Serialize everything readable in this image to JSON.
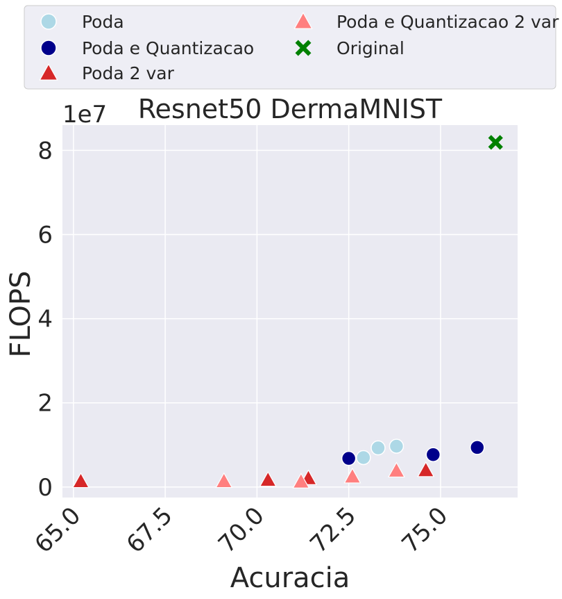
{
  "chart_data": {
    "type": "scatter",
    "title": "Resnet50 DermaMNIST",
    "xlabel": "Acuracia",
    "ylabel": "FLOPS",
    "y_offset_text": "1e7",
    "xlim": [
      64.7,
      77.1
    ],
    "ylim": [
      -0.25,
      8.6
    ],
    "y_scale_exponent": 7,
    "x_ticks": [
      65.0,
      67.5,
      70.0,
      72.5,
      75.0
    ],
    "x_tick_labels": [
      "65.0",
      "67.5",
      "70.0",
      "72.5",
      "75.0"
    ],
    "y_ticks": [
      0,
      2,
      4,
      6,
      8
    ],
    "y_tick_labels": [
      "0",
      "2",
      "4",
      "6",
      "8"
    ],
    "grid": true,
    "legend_position": "top, outside plot, two columns",
    "series": [
      {
        "name": "Poda",
        "marker": "circle",
        "color": "#add8e6",
        "points": [
          [
            72.9,
            0.7
          ],
          [
            73.3,
            0.93
          ],
          [
            73.8,
            0.97
          ]
        ]
      },
      {
        "name": "Poda e Quantizacao",
        "marker": "circle",
        "color": "#00008b",
        "points": [
          [
            72.5,
            0.68
          ],
          [
            74.8,
            0.77
          ],
          [
            76.0,
            0.94
          ]
        ]
      },
      {
        "name": "Poda 2 var",
        "marker": "triangle",
        "color": "#d62728",
        "points": [
          [
            65.2,
            0.14
          ],
          [
            70.3,
            0.17
          ],
          [
            71.4,
            0.21
          ],
          [
            74.6,
            0.4
          ]
        ]
      },
      {
        "name": "Poda e Quantizacao 2 var",
        "marker": "triangle",
        "color": "#ff7f7f",
        "points": [
          [
            69.1,
            0.14
          ],
          [
            71.2,
            0.13
          ],
          [
            72.6,
            0.25
          ],
          [
            73.8,
            0.39
          ]
        ]
      },
      {
        "name": "Original",
        "marker": "x",
        "color": "#008000",
        "points": [
          [
            76.5,
            8.19
          ]
        ]
      }
    ]
  }
}
